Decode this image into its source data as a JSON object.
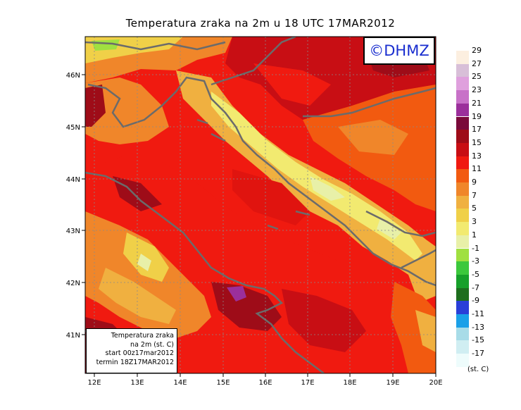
{
  "title": "Temperatura zraka na 2m u 18 UTC 17MAR2012",
  "logo": "©DHMZ",
  "info_box": {
    "line1": "Temperatura zraka",
    "line2": "na 2m (st. C)",
    "line3": "start 00z17mar2012",
    "line4": "termin 18Z17MAR2012"
  },
  "axes": {
    "x_ticks": [
      "12E",
      "13E",
      "14E",
      "15E",
      "16E",
      "17E",
      "18E",
      "19E",
      "20E"
    ],
    "y_ticks": [
      "46N",
      "45N",
      "44N",
      "43N",
      "42N",
      "41N"
    ]
  },
  "legend": {
    "unit": "(st. C)",
    "levels": [
      {
        "label": "29",
        "color": "#fcefe0"
      },
      {
        "label": "27",
        "color": "#d8bfd8"
      },
      {
        "label": "25",
        "color": "#dfa0dd"
      },
      {
        "label": "23",
        "color": "#c871c8"
      },
      {
        "label": "21",
        "color": "#9b2f9b"
      },
      {
        "label": "19",
        "color": "#7a0a3a"
      },
      {
        "label": "17",
        "color": "#9e0c18"
      },
      {
        "label": "15",
        "color": "#c80e14"
      },
      {
        "label": "13",
        "color": "#f01a10"
      },
      {
        "label": "11",
        "color": "#f25a10"
      },
      {
        "label": "9",
        "color": "#f0862a"
      },
      {
        "label": "7",
        "color": "#f0b040"
      },
      {
        "label": "5",
        "color": "#f0d048"
      },
      {
        "label": "3",
        "color": "#f2ea70"
      },
      {
        "label": "1",
        "color": "#e8f0a8"
      },
      {
        "label": "-1",
        "color": "#a0e040"
      },
      {
        "label": "-3",
        "color": "#3cc83c"
      },
      {
        "label": "-5",
        "color": "#17a02a"
      },
      {
        "label": "-7",
        "color": "#1e6e1e"
      },
      {
        "label": "-9",
        "color": "#2a3fd8"
      },
      {
        "label": "-11",
        "color": "#1aa0e8"
      },
      {
        "label": "-13",
        "color": "#a8dce8"
      },
      {
        "label": "-15",
        "color": "#d0eef2"
      },
      {
        "label": "-17",
        "color": "#eefcfc"
      }
    ]
  }
}
